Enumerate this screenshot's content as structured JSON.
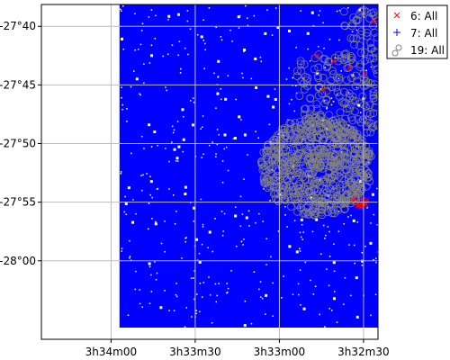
{
  "chart_data": {
    "type": "scatter",
    "title": "",
    "xlabel": "",
    "ylabel": "",
    "x_axis": {
      "kind": "right-ascension",
      "reversed": true,
      "range_deg": [
        53.6035,
        53.1035
      ],
      "ticks": [
        {
          "label": "3h34m00",
          "value_deg": 53.5
        },
        {
          "label": "3h33m30",
          "value_deg": 53.375
        },
        {
          "label": "3h33m00",
          "value_deg": 53.25
        },
        {
          "label": "3h32m30",
          "value_deg": 53.125
        }
      ]
    },
    "y_axis": {
      "kind": "declination",
      "range_deg": [
        -28.1116,
        -27.6357
      ],
      "ticks": [
        {
          "label": "-27°40",
          "value_deg": -27.6667
        },
        {
          "label": "-27°45",
          "value_deg": -27.75
        },
        {
          "label": "-27°50",
          "value_deg": -27.8333
        },
        {
          "label": "-27°55",
          "value_deg": -27.9167
        },
        {
          "label": "-28°00",
          "value_deg": -28.0
        }
      ]
    },
    "grid": true,
    "legend_position": "outside-top-right",
    "series": [
      {
        "name": "6: All",
        "marker": "x",
        "color": "#ff0000",
        "description_region": {
          "ra_deg": [
            53.11,
            53.2
          ],
          "dec_deg": [
            -27.92,
            -27.66
          ]
        }
      },
      {
        "name": "7: All",
        "marker": "+",
        "color": "#0000ff",
        "description_region": {
          "ra_deg": [
            53.104,
            53.4875
          ],
          "dec_deg": [
            -28.095,
            -27.636
          ]
        }
      },
      {
        "name": "19: All",
        "marker": "o",
        "color": "#808080",
        "description_region": {
          "ra_deg": [
            53.1,
            53.26
          ],
          "dec_deg": [
            -27.94,
            -27.64
          ]
        }
      }
    ]
  }
}
